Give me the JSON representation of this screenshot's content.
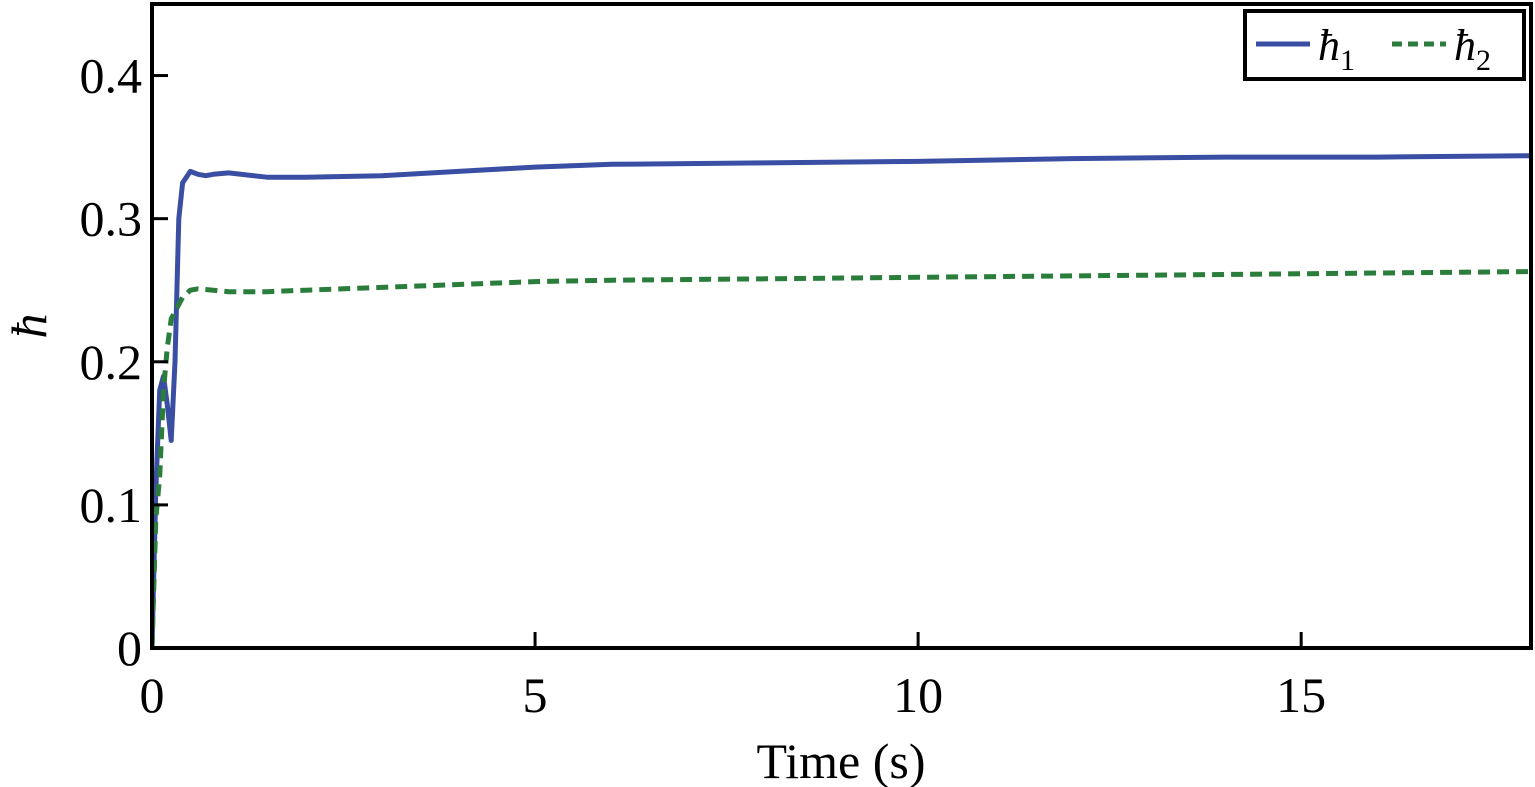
{
  "chart_data": {
    "type": "line",
    "title": "",
    "xlabel": "Time (s)",
    "ylabel": "ħ",
    "xlim": [
      0,
      18
    ],
    "ylim": [
      0,
      0.45
    ],
    "xticks": [
      0,
      5,
      10,
      15
    ],
    "xtick_labels": [
      "0",
      "5",
      "10",
      "15"
    ],
    "yticks": [
      0,
      0.1,
      0.2,
      0.3,
      0.4
    ],
    "ytick_labels": [
      "0",
      "0.1",
      "0.2",
      "0.3",
      "0.4"
    ],
    "grid": false,
    "legend": {
      "position": "top-right",
      "orientation": "horizontal"
    },
    "series": [
      {
        "name": "ħ",
        "name_subscript": "1",
        "color": "#3a4fa3",
        "style": "solid",
        "x": [
          0,
          0.05,
          0.1,
          0.15,
          0.2,
          0.25,
          0.3,
          0.35,
          0.4,
          0.5,
          0.6,
          0.7,
          0.8,
          1.0,
          1.5,
          2.0,
          3.0,
          4.0,
          5.0,
          6.0,
          8.0,
          10.0,
          12.0,
          14.0,
          16.0,
          18.0
        ],
        "y": [
          0,
          0.11,
          0.18,
          0.19,
          0.17,
          0.145,
          0.2,
          0.3,
          0.325,
          0.333,
          0.331,
          0.33,
          0.331,
          0.332,
          0.329,
          0.329,
          0.33,
          0.333,
          0.336,
          0.338,
          0.339,
          0.34,
          0.342,
          0.343,
          0.343,
          0.344
        ]
      },
      {
        "name": "ħ",
        "name_subscript": "2",
        "color": "#2a7d3b",
        "style": "dashed",
        "x": [
          0,
          0.05,
          0.1,
          0.15,
          0.2,
          0.25,
          0.3,
          0.35,
          0.4,
          0.5,
          0.6,
          0.8,
          1.0,
          1.5,
          2.0,
          3.0,
          4.0,
          5.0,
          6.0,
          8.0,
          10.0,
          12.0,
          14.0,
          16.0,
          18.0
        ],
        "y": [
          0,
          0.09,
          0.12,
          0.18,
          0.21,
          0.23,
          0.235,
          0.24,
          0.245,
          0.25,
          0.251,
          0.25,
          0.249,
          0.249,
          0.25,
          0.252,
          0.254,
          0.256,
          0.257,
          0.258,
          0.259,
          0.26,
          0.261,
          0.262,
          0.263
        ]
      }
    ]
  }
}
